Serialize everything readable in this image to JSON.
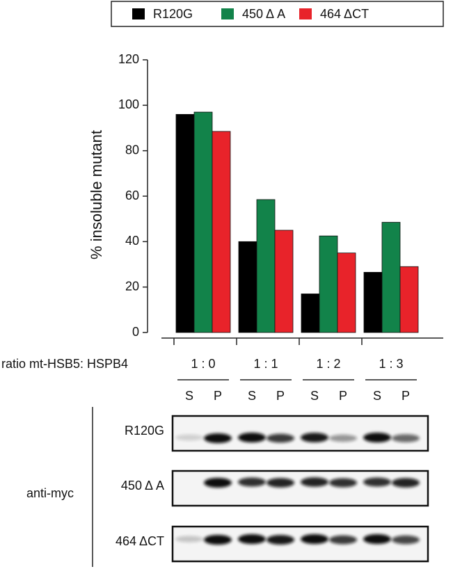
{
  "chart_data": {
    "type": "bar",
    "ylabel": "% insoluble mutant",
    "xlabel": "ratio mt-HSB5: HSPB4",
    "categories": [
      "1 : 0",
      "1 : 1",
      "1 : 2",
      "1 : 3"
    ],
    "series": [
      {
        "name": "R120G",
        "color": "#000000",
        "values": [
          96,
          40,
          17,
          26.5
        ]
      },
      {
        "name": "450 Δ A",
        "color": "#12834a",
        "values": [
          97,
          58.5,
          42.5,
          48.5
        ]
      },
      {
        "name": "464 ΔCT",
        "color": "#e8232a",
        "values": [
          88.5,
          45,
          35,
          29
        ]
      }
    ],
    "ylim": [
      0,
      120
    ],
    "yticks": [
      0,
      20,
      40,
      60,
      80,
      100,
      120
    ],
    "legend": "top"
  },
  "blot": {
    "lanes": [
      "S",
      "P",
      "S",
      "P",
      "S",
      "P",
      "S",
      "P"
    ],
    "antibody": "anti-myc",
    "rows": [
      "R120G",
      "450 Δ A",
      "464 ΔCT"
    ]
  }
}
